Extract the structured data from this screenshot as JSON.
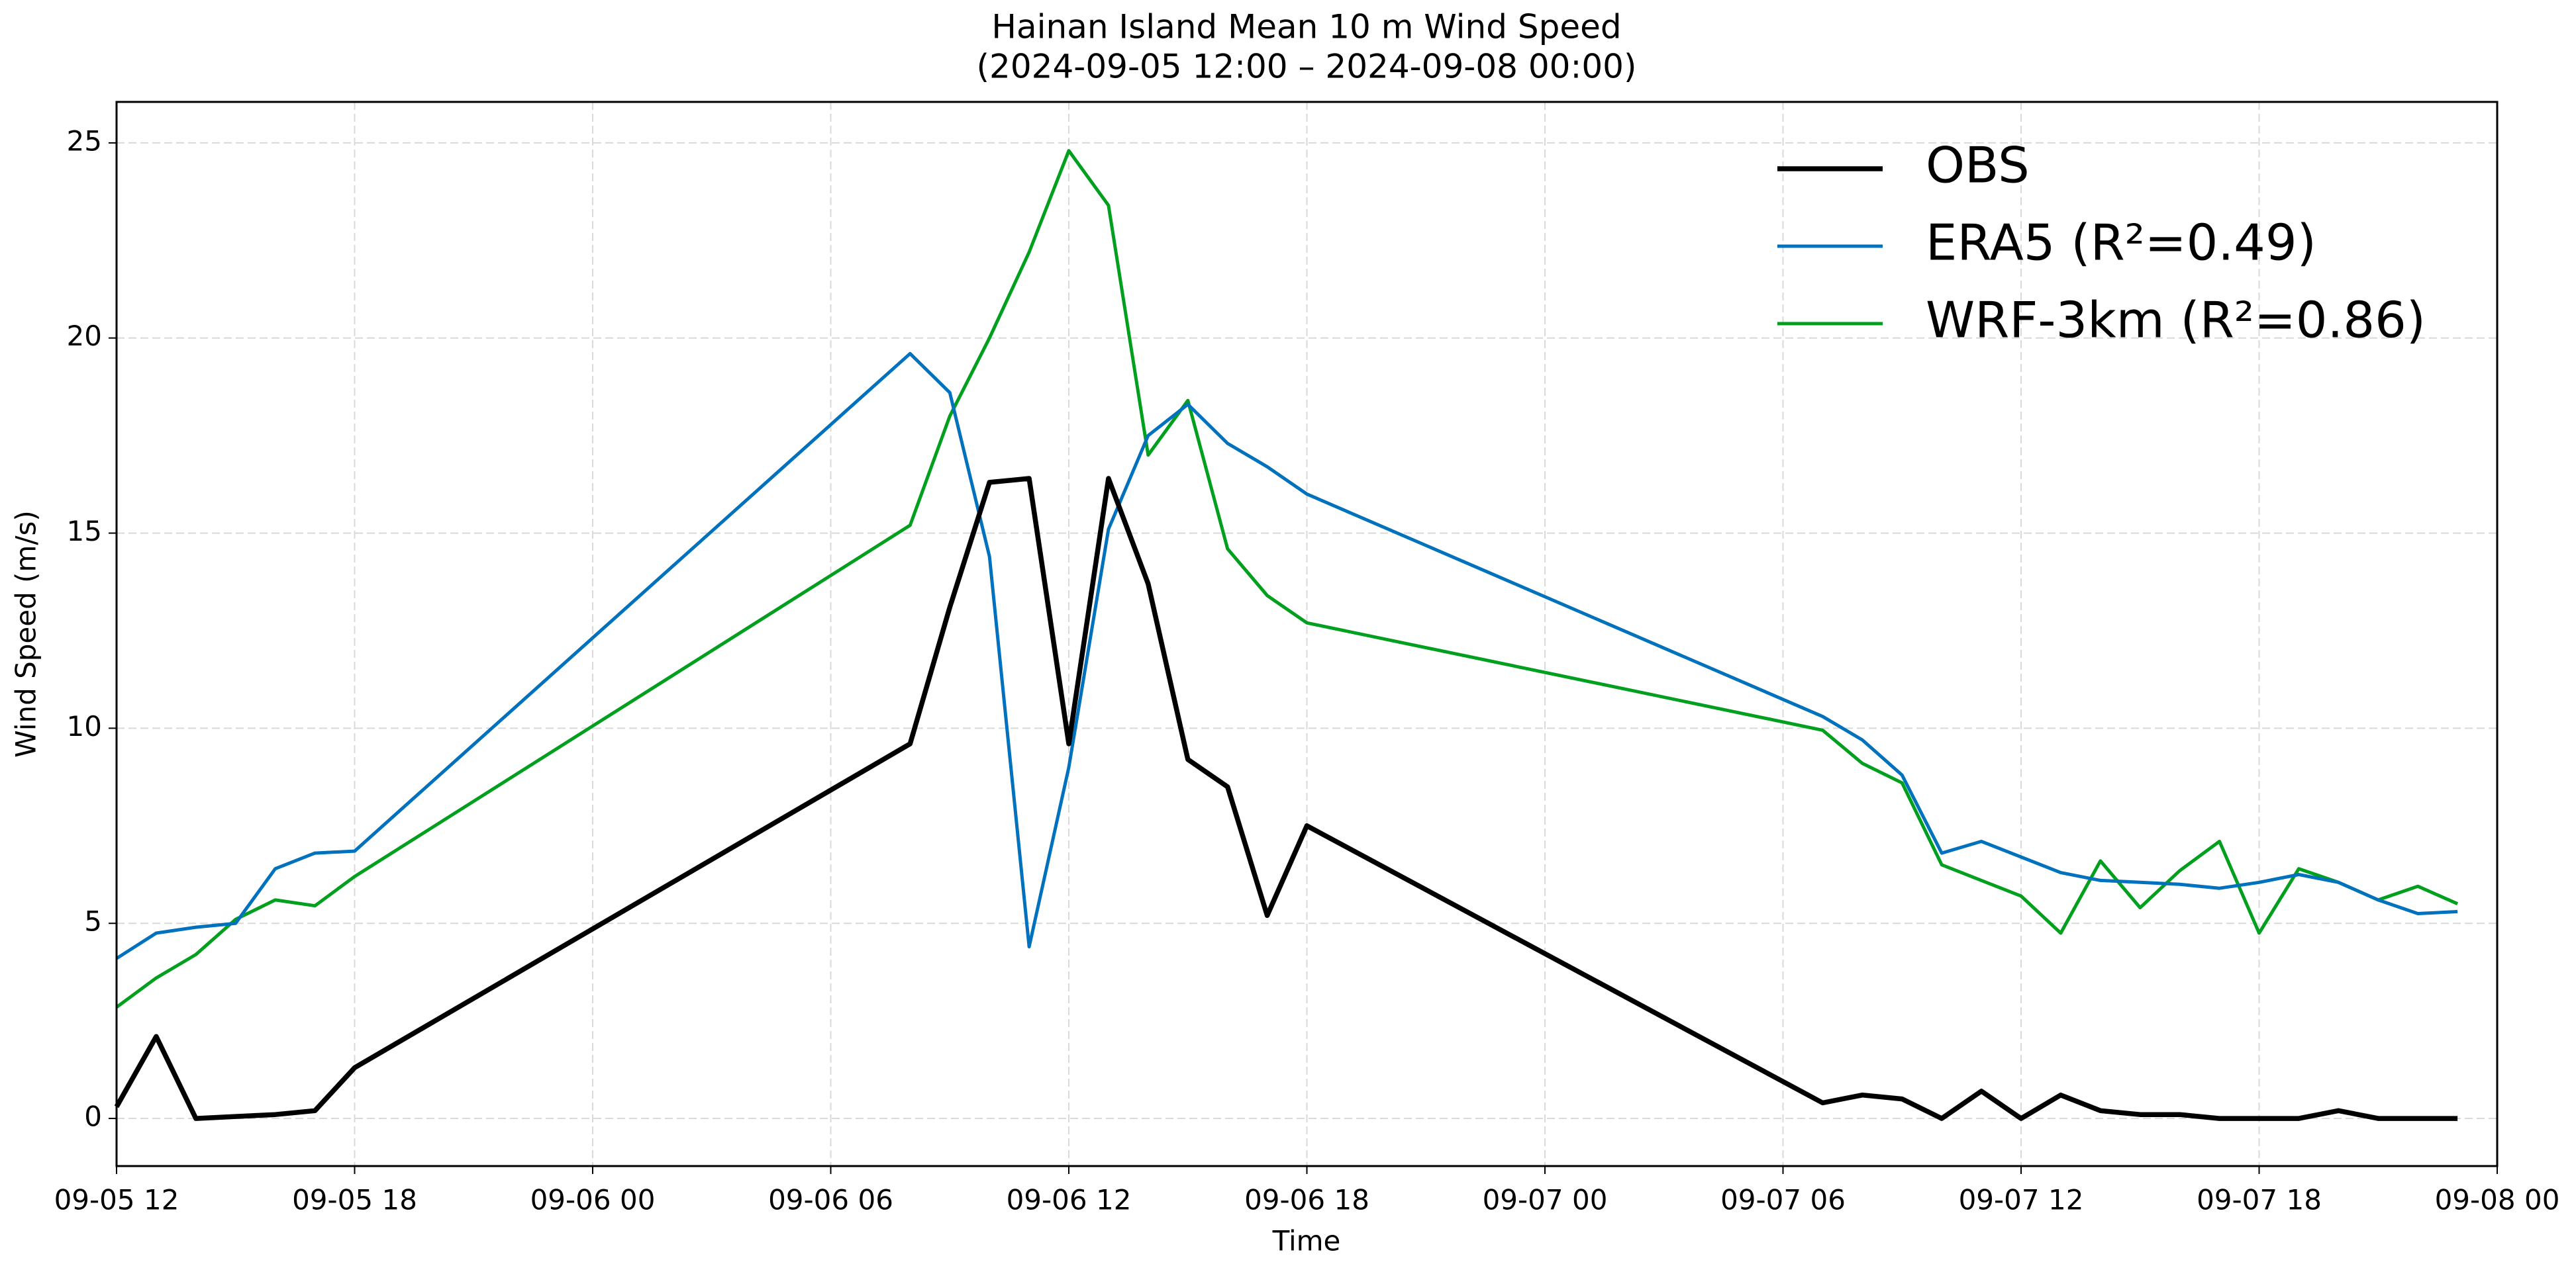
{
  "chart_data": {
    "type": "line",
    "title": "Hainan Island Mean 10 m Wind Speed",
    "subtitle": "(2024-09-05 12:00 – 2024-09-08 00:00)",
    "x_label": "Time",
    "y_label": "Wind Speed (m/s)",
    "x": [
      "2024-09-05 12:00",
      "2024-09-05 13:00",
      "2024-09-05 14:00",
      "2024-09-05 15:00",
      "2024-09-05 16:00",
      "2024-09-05 17:00",
      "2024-09-05 18:00",
      "2024-09-06 08:00",
      "2024-09-06 09:00",
      "2024-09-06 10:00",
      "2024-09-06 11:00",
      "2024-09-06 12:00",
      "2024-09-06 13:00",
      "2024-09-06 14:00",
      "2024-09-06 15:00",
      "2024-09-06 16:00",
      "2024-09-06 17:00",
      "2024-09-06 18:00",
      "2024-09-07 07:00",
      "2024-09-07 08:00",
      "2024-09-07 09:00",
      "2024-09-07 10:00",
      "2024-09-07 11:00",
      "2024-09-07 12:00",
      "2024-09-07 13:00",
      "2024-09-07 14:00",
      "2024-09-07 15:00",
      "2024-09-07 16:00",
      "2024-09-07 17:00",
      "2024-09-07 18:00",
      "2024-09-07 19:00",
      "2024-09-07 20:00",
      "2024-09-07 21:00",
      "2024-09-07 22:00",
      "2024-09-07 23:00"
    ],
    "series": [
      {
        "name": "OBS",
        "color": "#000000",
        "width": 3,
        "values": [
          0.3,
          2.1,
          0.0,
          0.05,
          0.1,
          0.2,
          1.3,
          9.6,
          13.1,
          16.3,
          16.4,
          9.6,
          16.4,
          13.7,
          9.2,
          8.5,
          5.2,
          7.5,
          0.4,
          0.6,
          0.5,
          0.0,
          0.7,
          0.0,
          0.6,
          0.2,
          0.1,
          0.1,
          0.0,
          0.0,
          0.0,
          0.2,
          0.0,
          0.0,
          0.0
        ]
      },
      {
        "name": "ERA5 (R²=0.49)",
        "color": "#0072bd",
        "width": 2,
        "values": [
          4.1,
          4.75,
          4.9,
          5.0,
          6.4,
          6.8,
          6.85,
          19.6,
          18.6,
          14.4,
          4.4,
          9.0,
          15.1,
          17.5,
          18.3,
          17.3,
          16.7,
          16.0,
          10.3,
          9.7,
          8.8,
          6.8,
          7.1,
          6.7,
          6.3,
          6.1,
          6.05,
          6.0,
          5.9,
          6.05,
          6.25,
          6.05,
          5.6,
          5.25,
          5.3
        ]
      },
      {
        "name": "WRF-3km (R²=0.86)",
        "color": "#00a01e",
        "width": 2,
        "values": [
          2.85,
          3.6,
          4.2,
          5.1,
          5.6,
          5.45,
          6.2,
          15.2,
          18.0,
          20.0,
          22.2,
          24.8,
          23.4,
          17.0,
          18.4,
          14.6,
          13.4,
          12.7,
          9.95,
          9.1,
          8.6,
          6.5,
          6.1,
          5.7,
          4.75,
          6.6,
          5.4,
          6.35,
          7.1,
          4.75,
          6.4,
          6.05,
          5.6,
          5.95,
          5.5
        ]
      }
    ],
    "xlim": [
      "2024-09-05 12:00",
      "2024-09-08 00:00"
    ],
    "xticks": [
      {
        "value": "2024-09-05 12:00",
        "label": "09-05 12"
      },
      {
        "value": "2024-09-05 18:00",
        "label": "09-05 18"
      },
      {
        "value": "2024-09-06 00:00",
        "label": "09-06 00"
      },
      {
        "value": "2024-09-06 06:00",
        "label": "09-06 06"
      },
      {
        "value": "2024-09-06 12:00",
        "label": "09-06 12"
      },
      {
        "value": "2024-09-06 18:00",
        "label": "09-06 18"
      },
      {
        "value": "2024-09-07 00:00",
        "label": "09-07 00"
      },
      {
        "value": "2024-09-07 06:00",
        "label": "09-07 06"
      },
      {
        "value": "2024-09-07 12:00",
        "label": "09-07 12"
      },
      {
        "value": "2024-09-07 18:00",
        "label": "09-07 18"
      },
      {
        "value": "2024-09-08 00:00",
        "label": "09-08 00"
      }
    ],
    "ylim": [
      -1.22,
      26.05
    ],
    "yticks": [
      0,
      5,
      10,
      15,
      20,
      25
    ],
    "grid": true,
    "legend": "upper right"
  }
}
